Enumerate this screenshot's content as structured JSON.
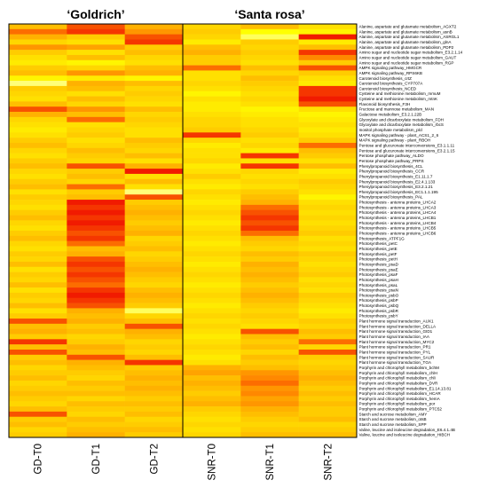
{
  "chart_data": {
    "type": "heatmap",
    "title": "",
    "xlabel": "",
    "ylabel": "",
    "groups": [
      {
        "label": "‘Goldrich’",
        "columns": [
          "GD-T0",
          "GD-T1",
          "GD-T2"
        ]
      },
      {
        "label": "‘Santa rosa’",
        "columns": [
          "SNR-T0",
          "SNR-T1",
          "SNR-T2"
        ]
      }
    ],
    "columns": [
      "GD-T0",
      "GD-T1",
      "GD-T2",
      "SNR-T0",
      "SNR-T1",
      "SNR-T2"
    ],
    "color_scale": {
      "low": "#ffff99",
      "mid_low": "#ffff00",
      "mid": "#ffcc00",
      "mid_high": "#ff8800",
      "high": "#ee0000"
    },
    "value_range": [
      0,
      1
    ],
    "legend": "none",
    "grid": false,
    "rows": [
      "Alanine, aspartate and glutamate metabolism_AGXT2",
      "Alanine, aspartate and glutamate metabolism_asnB",
      "Alanine, aspartate and glutamate metabolism_ASRGL1",
      "Alanine, aspartate and glutamate metabolism_glnA",
      "Alanine, aspartate and glutamate metabolism_PDP2",
      "Amino sugar and nucleotide sugar metabolism_E3.2.1.14",
      "Amino sugar and nucleotide sugar metabolism_GAUT",
      "Amino sugar and nucleotide sugar metabolism_RGP",
      "AMPK signaling pathway_HMGCR",
      "AMPK signaling pathway_RPS6KB",
      "Carotenoid biosynthesis_crtZ",
      "Carotenoid biosynthesis_CYP707A",
      "Carotenoid biosynthesis_NCED",
      "Cysteine and methionine metabolism_mmuM",
      "Cysteine and methionine metabolism_mtnK",
      "Flavonoid biosynthesis_F3H",
      "Fructose and mannose metabolism_MAN",
      "Galactose metabolism_E3.2.1.22B",
      "Glyoxylate and dicarboxylate metabolism_FDH",
      "Glyoxylate and dicarboxylate metabolism_rbcS",
      "Inositol phosphate metabolism_plcl",
      "MAPK signaling pathway - plant_ACS1_2_6",
      "MAPK signaling pathway - plant_RBOH",
      "Pentose and glucuronate interconversions_E3.1.1.11",
      "Pentose and glucuronate interconversions_E3.2.1.15",
      "Pentose phosphate pathway_ALDO",
      "Pentose phosphate pathway_PRPS",
      "Phenylpropanoid biosynthesis_4CL",
      "Phenylpropanoid biosynthesis_CCR",
      "Phenylpropanoid biosynthesis_E1.11.1.7",
      "Phenylpropanoid biosynthesis_E2.4.1.133",
      "Phenylpropanoid biosynthesis_E3.2.1.21",
      "Phenylpropanoid biosynthesis_EC1.1.1.195",
      "Phenylpropanoid biosynthesis_PAL",
      "Photosynthesis - antenna proteins_LHCA2",
      "Photosynthesis - antenna proteins_LHCA3",
      "Photosynthesis - antenna proteins_LHCA4",
      "Photosynthesis - antenna proteins_LHCB1",
      "Photosynthesis - antenna proteins_LHCB4",
      "Photosynthesis - antenna proteins_LHCB5",
      "Photosynthesis - antenna proteins_LHCB6",
      "Photosynthesis_ATPF1G",
      "Photosynthesis_petC",
      "Photosynthesis_petE",
      "Photosynthesis_petF",
      "Photosynthesis_petH",
      "Photosynthesis_psaD",
      "Photosynthesis_psaE",
      "Photosynthesis_psaF",
      "Photosynthesis_psaH",
      "Photosynthesis_psaL",
      "Photosynthesis_psaN",
      "Photosynthesis_psbO",
      "Photosynthesis_psbP",
      "Photosynthesis_psbQ",
      "Photosynthesis_psbR",
      "Photosynthesis_psbY",
      "Plant hormone signal transduction_AUX1",
      "Plant hormone signal transduction_DELLA",
      "Plant hormone signal transduction_GID1",
      "Plant hormone signal transduction_IAA",
      "Plant hormone signal transduction_MYC2",
      "Plant hormone signal transduction_PR1",
      "Plant hormone signal transduction_PYL",
      "Plant hormone signal transduction_SAUR",
      "Plant hormone signal transduction_TGA",
      "Porphyrin and chlorophyll metabolism_bchM",
      "Porphyrin and chlorophyll metabolism_chlH",
      "Porphyrin and chlorophyll metabolism_chlI",
      "Porphyrin and chlorophyll metabolism_DVR",
      "Porphyrin and chlorophyll metabolism_E1.14.13.81",
      "Porphyrin and chlorophyll metabolism_HCAR",
      "Porphyrin and chlorophyll metabolism_hemA",
      "Porphyrin and chlorophyll metabolism_por",
      "Porphyrin and chlorophyll metabolism_PTC52",
      "Starch and sucrose metabolism_AMY",
      "Starch and sucrose metabolism_otsB",
      "Starch and sucrose metabolism_SPP",
      "Valine, leucine and isoleucine degradation_E6.4.1.4B",
      "Valine, leucine and isoleucine degradation_HIBCH"
    ],
    "values": [
      [
        0.55,
        0.85,
        0.6,
        0.45,
        0.55,
        0.4
      ],
      [
        0.8,
        0.9,
        0.7,
        0.5,
        0.25,
        0.3
      ],
      [
        0.6,
        0.5,
        0.85,
        0.45,
        0.1,
        0.95
      ],
      [
        0.45,
        0.4,
        0.9,
        0.35,
        0.5,
        0.35
      ],
      [
        0.7,
        0.65,
        0.5,
        0.55,
        0.45,
        0.55
      ],
      [
        0.5,
        0.4,
        0.55,
        0.6,
        0.5,
        0.9
      ],
      [
        0.4,
        0.55,
        0.45,
        0.5,
        0.45,
        0.75
      ],
      [
        0.35,
        0.3,
        0.4,
        0.5,
        0.4,
        0.5
      ],
      [
        0.5,
        0.45,
        0.55,
        0.8,
        0.55,
        0.85
      ],
      [
        0.55,
        0.7,
        0.6,
        0.4,
        0.45,
        0.5
      ],
      [
        0.3,
        0.35,
        0.3,
        0.4,
        0.55,
        0.4
      ],
      [
        0.05,
        0.6,
        0.55,
        0.45,
        0.5,
        0.35
      ],
      [
        0.5,
        0.55,
        0.45,
        0.4,
        0.45,
        0.9
      ],
      [
        0.45,
        0.4,
        0.5,
        0.3,
        0.4,
        0.9
      ],
      [
        0.4,
        0.55,
        0.45,
        0.4,
        0.45,
        0.95
      ],
      [
        0.55,
        0.45,
        0.4,
        0.35,
        0.4,
        0.85
      ],
      [
        0.85,
        0.7,
        0.55,
        0.35,
        0.3,
        0.4
      ],
      [
        0.6,
        0.55,
        0.45,
        0.4,
        0.35,
        0.3
      ],
      [
        0.45,
        0.8,
        0.5,
        0.45,
        0.4,
        0.35
      ],
      [
        0.4,
        0.4,
        0.45,
        0.45,
        0.4,
        0.4
      ],
      [
        0.35,
        0.45,
        0.4,
        0.5,
        0.45,
        0.35
      ],
      [
        0.4,
        0.5,
        0.4,
        0.9,
        0.5,
        0.4
      ],
      [
        0.5,
        0.4,
        0.55,
        0.45,
        0.4,
        0.5
      ],
      [
        0.55,
        0.45,
        0.5,
        0.35,
        0.45,
        0.8
      ],
      [
        0.45,
        0.55,
        0.45,
        0.4,
        0.35,
        0.55
      ],
      [
        0.4,
        0.5,
        0.55,
        0.4,
        0.9,
        0.5
      ],
      [
        0.5,
        0.45,
        0.4,
        0.45,
        0.4,
        0.4
      ],
      [
        0.55,
        0.85,
        0.6,
        0.35,
        0.9,
        0.55
      ],
      [
        0.45,
        0.5,
        0.95,
        0.4,
        0.45,
        0.35
      ],
      [
        0.4,
        0.55,
        0.4,
        0.5,
        0.4,
        0.4
      ],
      [
        0.5,
        0.45,
        0.55,
        0.4,
        0.45,
        0.5
      ],
      [
        0.55,
        0.8,
        0.4,
        0.35,
        0.4,
        0.45
      ],
      [
        0.4,
        0.5,
        0.05,
        0.45,
        0.5,
        0.4
      ],
      [
        0.5,
        0.55,
        0.85,
        0.4,
        0.55,
        0.3
      ],
      [
        0.45,
        0.95,
        0.5,
        0.35,
        0.6,
        0.4
      ],
      [
        0.4,
        0.9,
        0.55,
        0.4,
        0.8,
        0.45
      ],
      [
        0.5,
        0.95,
        0.6,
        0.45,
        0.85,
        0.4
      ],
      [
        0.55,
        0.9,
        0.55,
        0.4,
        0.9,
        0.45
      ],
      [
        0.45,
        0.95,
        0.5,
        0.35,
        0.85,
        0.4
      ],
      [
        0.4,
        0.9,
        0.55,
        0.4,
        0.9,
        0.45
      ],
      [
        0.5,
        0.85,
        0.6,
        0.45,
        0.8,
        0.5
      ],
      [
        0.55,
        0.9,
        0.45,
        0.4,
        0.55,
        0.4
      ],
      [
        0.45,
        0.8,
        0.5,
        0.35,
        0.5,
        0.45
      ],
      [
        0.4,
        0.55,
        0.55,
        0.4,
        0.45,
        0.4
      ],
      [
        0.5,
        0.6,
        0.45,
        0.45,
        0.55,
        0.5
      ],
      [
        0.45,
        0.85,
        0.5,
        0.4,
        0.5,
        0.45
      ],
      [
        0.55,
        0.9,
        0.55,
        0.35,
        0.6,
        0.4
      ],
      [
        0.4,
        0.85,
        0.6,
        0.4,
        0.55,
        0.45
      ],
      [
        0.5,
        0.9,
        0.55,
        0.45,
        0.6,
        0.5
      ],
      [
        0.45,
        0.85,
        0.5,
        0.4,
        0.55,
        0.4
      ],
      [
        0.55,
        0.8,
        0.45,
        0.35,
        0.5,
        0.45
      ],
      [
        0.4,
        0.9,
        0.55,
        0.4,
        0.55,
        0.4
      ],
      [
        0.5,
        0.95,
        0.6,
        0.45,
        0.6,
        0.5
      ],
      [
        0.45,
        0.9,
        0.55,
        0.4,
        0.55,
        0.45
      ],
      [
        0.55,
        0.85,
        0.5,
        0.35,
        0.5,
        0.4
      ],
      [
        0.4,
        0.6,
        0.1,
        0.4,
        0.45,
        0.35
      ],
      [
        0.5,
        0.55,
        0.45,
        0.45,
        0.5,
        0.4
      ],
      [
        0.85,
        0.6,
        0.55,
        0.4,
        0.45,
        0.5
      ],
      [
        0.55,
        0.5,
        0.85,
        0.45,
        0.4,
        0.45
      ],
      [
        0.6,
        0.55,
        0.6,
        0.4,
        0.85,
        0.55
      ],
      [
        0.5,
        0.45,
        0.55,
        0.35,
        0.55,
        0.5
      ],
      [
        0.9,
        0.5,
        0.45,
        0.4,
        0.5,
        0.8
      ],
      [
        0.55,
        0.6,
        0.5,
        0.45,
        0.55,
        0.45
      ],
      [
        0.85,
        0.55,
        0.45,
        0.4,
        0.45,
        0.85
      ],
      [
        0.5,
        0.85,
        0.55,
        0.35,
        0.55,
        0.5
      ],
      [
        0.55,
        0.6,
        0.9,
        0.4,
        0.5,
        0.45
      ],
      [
        0.45,
        0.55,
        0.5,
        0.6,
        0.55,
        0.5
      ],
      [
        0.5,
        0.5,
        0.55,
        0.65,
        0.7,
        0.55
      ],
      [
        0.55,
        0.45,
        0.6,
        0.55,
        0.75,
        0.6
      ],
      [
        0.45,
        0.55,
        0.55,
        0.6,
        0.8,
        0.55
      ],
      [
        0.5,
        0.5,
        0.6,
        0.55,
        0.7,
        0.5
      ],
      [
        0.55,
        0.55,
        0.55,
        0.5,
        0.75,
        0.55
      ],
      [
        0.5,
        0.45,
        0.5,
        0.55,
        0.65,
        0.5
      ],
      [
        0.45,
        0.55,
        0.55,
        0.6,
        0.7,
        0.55
      ],
      [
        0.55,
        0.5,
        0.5,
        0.5,
        0.6,
        0.5
      ],
      [
        0.85,
        0.45,
        0.55,
        0.45,
        0.55,
        0.5
      ],
      [
        0.5,
        0.55,
        0.45,
        0.4,
        0.5,
        0.55
      ],
      [
        0.55,
        0.5,
        0.5,
        0.45,
        0.45,
        0.45
      ],
      [
        0.45,
        0.55,
        0.55,
        0.4,
        0.5,
        0.5
      ],
      [
        0.5,
        0.6,
        0.5,
        0.45,
        0.55,
        0.55
      ]
    ]
  }
}
